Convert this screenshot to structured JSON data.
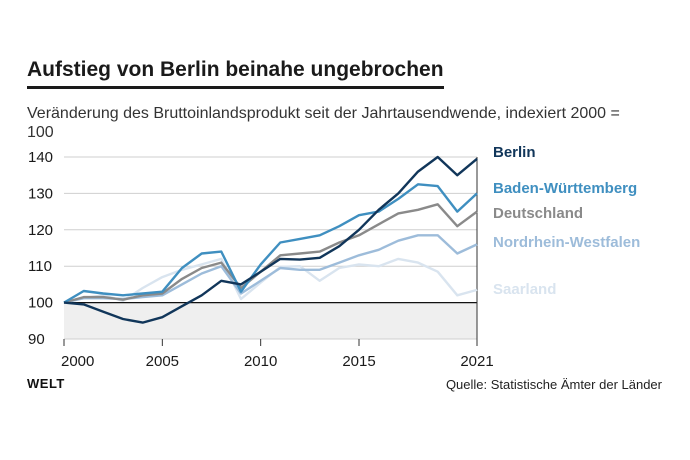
{
  "title": "Aufstieg von Berlin beinahe ungebrochen",
  "subtitle": "Veränderung des Bruttoinlandsprodukt seit der Jahrtausendwende, indexiert 2000 = 100",
  "logo": "WELT",
  "source": "Quelle: Statistische Ämter der Länder",
  "chart_data": {
    "type": "line",
    "title": "Aufstieg von Berlin beinahe ungebrochen",
    "xlabel": "",
    "ylabel": "",
    "xlim": [
      2000,
      2021
    ],
    "ylim": [
      90,
      140
    ],
    "x_ticks": [
      "2000",
      "2005",
      "2010",
      "2015",
      "2021"
    ],
    "y_ticks": [
      "90",
      "100",
      "110",
      "120",
      "130",
      "140"
    ],
    "x": [
      2000,
      2001,
      2002,
      2003,
      2004,
      2005,
      2006,
      2007,
      2008,
      2009,
      2010,
      2011,
      2012,
      2013,
      2014,
      2015,
      2016,
      2017,
      2018,
      2019,
      2020,
      2021
    ],
    "series": [
      {
        "name": "Saarland",
        "color": "#d9e4ef",
        "values": [
          100,
          101.2,
          102.0,
          100.5,
          104.0,
          107.0,
          109.0,
          110.5,
          112.0,
          101.0,
          105.5,
          109.8,
          110.0,
          106.0,
          109.5,
          110.5,
          110.0,
          112.0,
          111.0,
          108.5,
          102.0,
          103.5
        ]
      },
      {
        "name": "Nordrhein-Westfalen",
        "color": "#9dbcda",
        "values": [
          100,
          101.2,
          101.2,
          101.0,
          101.5,
          102.0,
          105.0,
          108.0,
          110.0,
          102.5,
          106.0,
          109.5,
          109.0,
          109.0,
          111.0,
          113.0,
          114.5,
          117.0,
          118.5,
          118.5,
          113.5,
          116.0
        ]
      },
      {
        "name": "Deutschland",
        "color": "#8a8a8a",
        "values": [
          100,
          101.5,
          101.5,
          100.8,
          102.0,
          102.5,
          106.5,
          109.5,
          111.0,
          104.0,
          108.5,
          113.0,
          113.5,
          114.0,
          116.5,
          118.5,
          121.5,
          124.5,
          125.5,
          127.0,
          121.0,
          125.0
        ]
      },
      {
        "name": "Baden-Württemberg",
        "color": "#3f8fc0",
        "values": [
          100,
          103.2,
          102.5,
          102.0,
          102.5,
          103.0,
          109.5,
          113.5,
          114.0,
          103.0,
          110.5,
          116.5,
          117.5,
          118.5,
          121.0,
          124.0,
          125.0,
          128.5,
          132.5,
          132.0,
          125.0,
          130.0
        ]
      },
      {
        "name": "Berlin",
        "color": "#11365a",
        "values": [
          100,
          99.5,
          97.5,
          95.5,
          94.5,
          96.0,
          99.0,
          102.0,
          106.0,
          105.0,
          108.5,
          112.0,
          111.8,
          112.3,
          115.5,
          120.0,
          125.5,
          130.0,
          136.0,
          140.0,
          135.0,
          139.5
        ]
      }
    ],
    "legend": [
      {
        "label": "Berlin",
        "color": "#11365a"
      },
      {
        "label": "Baden-Württemberg",
        "color": "#3f8fc0"
      },
      {
        "label": "Deutschland",
        "color": "#8a8a8a"
      },
      {
        "label": "Nordrhein-Westfalen",
        "color": "#9dbcda"
      },
      {
        "label": "Saarland",
        "color": "#d9e4ef"
      }
    ],
    "shaded_below": 100,
    "grid": true
  }
}
